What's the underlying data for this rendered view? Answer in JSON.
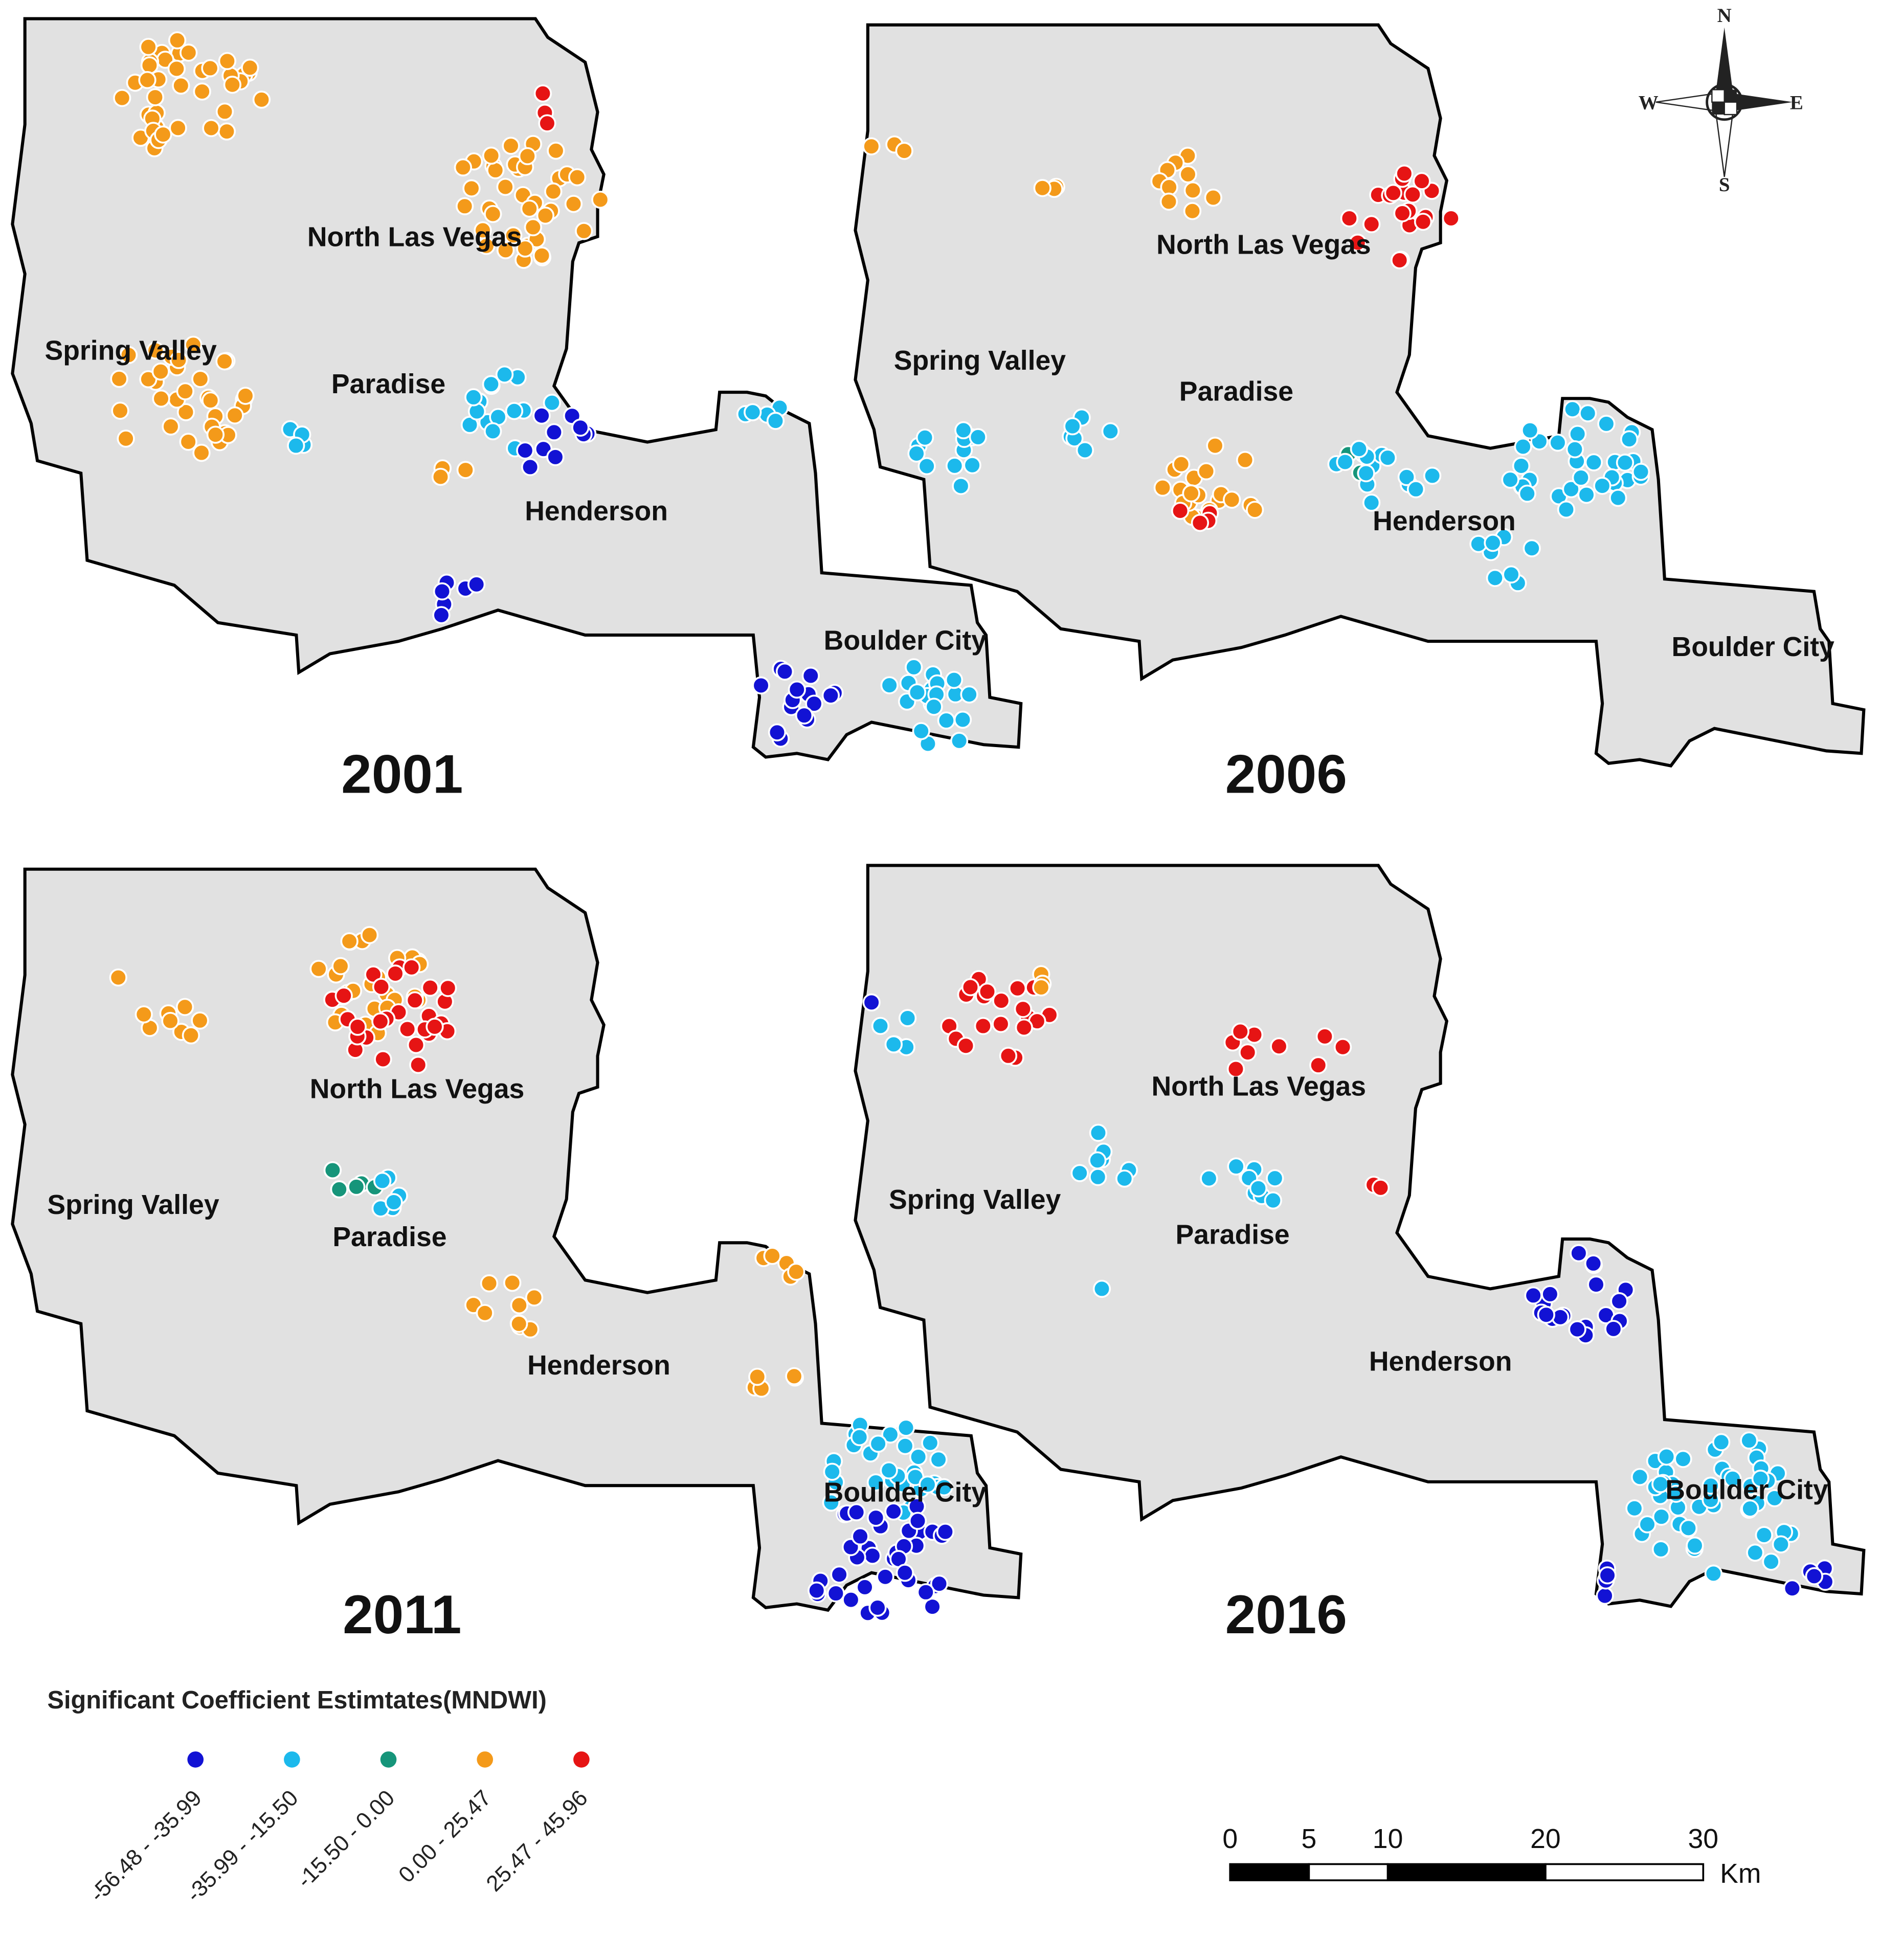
{
  "panels": [
    {
      "year": "2001",
      "places": [
        "North Las Vegas",
        "Spring Valley",
        "Paradise",
        "Henderson",
        "Boulder City"
      ]
    },
    {
      "year": "2006",
      "places": [
        "North Las Vegas",
        "Spring Valley",
        "Paradise",
        "Henderson",
        "Boulder City"
      ]
    },
    {
      "year": "2011",
      "places": [
        "North Las Vegas",
        "Spring Valley",
        "Paradise",
        "Henderson",
        "Boulder City"
      ]
    },
    {
      "year": "2016",
      "places": [
        "North Las Vegas",
        "Spring Valley",
        "Paradise",
        "Henderson",
        "Boulder City"
      ]
    }
  ],
  "legend": {
    "title": "Significant Coefficient Estimtates(MNDWI)",
    "classes": [
      {
        "label": "-56.48 - -35.99",
        "color": "#1212d4"
      },
      {
        "label": "-35.99 - -15.50",
        "color": "#1cb9ec"
      },
      {
        "label": "-15.50 - 0.00",
        "color": "#16957a"
      },
      {
        "label": "0.00 - 25.47",
        "color": "#f49a1a"
      },
      {
        "label": "25.47 - 45.96",
        "color": "#e61414"
      }
    ]
  },
  "scale_bar": {
    "ticks": [
      0,
      5,
      10,
      20,
      30
    ],
    "unit": "Km"
  },
  "compass": {
    "north": "N",
    "south": "S",
    "east": "E",
    "west": "W"
  }
}
